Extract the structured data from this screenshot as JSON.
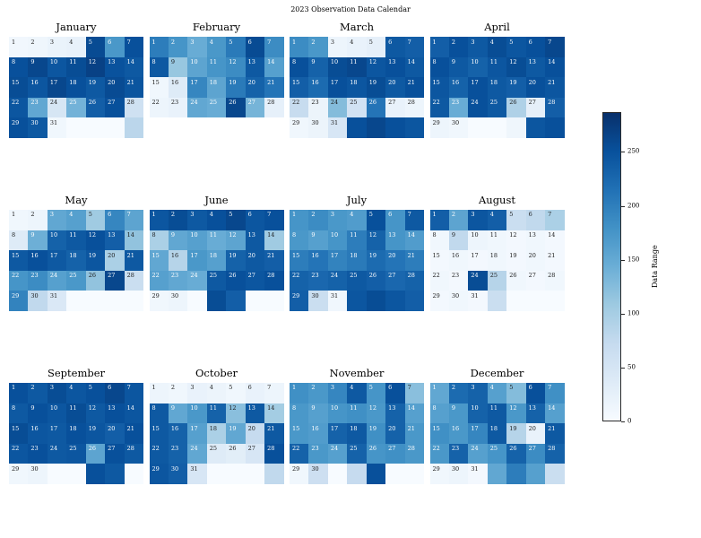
{
  "title": "2023 Observation Data Calendar",
  "chart_data": {
    "type": "heatmap",
    "title": "2023 Observation Data Calendar",
    "colorbar": {
      "label": "Data Range",
      "ticks": [
        0,
        50,
        100,
        150,
        200,
        250
      ],
      "vmin": 0,
      "vmax": 287
    },
    "palette": {
      "name": "Blues",
      "stops": [
        "#f7fbff",
        "#deebf7",
        "#c6dbef",
        "#9ecae1",
        "#6baed6",
        "#4292c6",
        "#2171b5",
        "#08519c",
        "#08306b"
      ]
    },
    "text_color_threshold": 135,
    "months": [
      {
        "name": "January",
        "days": 31,
        "values": [
          8,
          12,
          18,
          22,
          258,
          172,
          252,
          252,
          262,
          246,
          256,
          268,
          250,
          242,
          256,
          246,
          262,
          252,
          242,
          258,
          247,
          246,
          152,
          48,
          138,
          236,
          252,
          58,
          252,
          242,
          10,
          0,
          0,
          0,
          82
        ]
      },
      {
        "name": "February",
        "days": 28,
        "values": [
          202,
          176,
          146,
          172,
          206,
          258,
          186,
          242,
          112,
          156,
          176,
          186,
          242,
          162,
          10,
          36,
          192,
          156,
          206,
          232,
          212,
          14,
          20,
          152,
          146,
          262,
          136,
          24
        ]
      },
      {
        "name": "March",
        "days": 31,
        "values": [
          186,
          172,
          14,
          20,
          26,
          242,
          236,
          252,
          232,
          256,
          262,
          246,
          252,
          242,
          236,
          222,
          252,
          246,
          256,
          242,
          252,
          70,
          16,
          126,
          56,
          212,
          20,
          14,
          10,
          16,
          46,
          252,
          262,
          252,
          246
        ]
      },
      {
        "name": "April",
        "days": 30,
        "values": [
          236,
          252,
          242,
          256,
          246,
          252,
          262,
          252,
          242,
          232,
          246,
          256,
          242,
          252,
          246,
          232,
          252,
          242,
          236,
          252,
          246,
          242,
          146,
          252,
          242,
          92,
          26,
          236,
          14,
          10,
          0,
          0,
          12,
          246,
          252
        ]
      },
      {
        "name": "May",
        "days": 31,
        "values": [
          10,
          14,
          152,
          162,
          106,
          192,
          156,
          36,
          142,
          232,
          242,
          252,
          236,
          116,
          242,
          252,
          242,
          232,
          246,
          96,
          242,
          176,
          186,
          162,
          172,
          116,
          262,
          66,
          196,
          76,
          42,
          0,
          0,
          0,
          0
        ]
      },
      {
        "name": "June",
        "days": 30,
        "values": [
          246,
          256,
          242,
          252,
          262,
          246,
          252,
          96,
          152,
          162,
          146,
          156,
          242,
          106,
          152,
          86,
          172,
          162,
          232,
          242,
          236,
          162,
          152,
          146,
          242,
          252,
          246,
          252,
          10,
          14,
          0,
          256,
          236,
          0,
          0
        ]
      },
      {
        "name": "July",
        "days": 31,
        "values": [
          176,
          186,
          172,
          166,
          252,
          176,
          242,
          172,
          162,
          176,
          202,
          232,
          176,
          166,
          202,
          212,
          196,
          206,
          222,
          212,
          202,
          232,
          226,
          232,
          242,
          236,
          226,
          232,
          236,
          66,
          10,
          246,
          256,
          246,
          236
        ]
      },
      {
        "name": "August",
        "days": 31,
        "values": [
          236,
          156,
          246,
          236,
          66,
          76,
          96,
          10,
          76,
          14,
          10,
          6,
          10,
          6,
          6,
          10,
          6,
          10,
          6,
          10,
          6,
          10,
          6,
          256,
          86,
          10,
          6,
          10,
          6,
          10,
          6,
          66,
          0,
          0,
          0
        ]
      },
      {
        "name": "September",
        "days": 30,
        "values": [
          252,
          242,
          256,
          246,
          252,
          262,
          246,
          242,
          252,
          246,
          256,
          242,
          252,
          246,
          256,
          246,
          242,
          252,
          246,
          236,
          252,
          246,
          252,
          242,
          246,
          156,
          252,
          242,
          10,
          14,
          0,
          0,
          252,
          242,
          0
        ]
      },
      {
        "name": "October",
        "days": 31,
        "values": [
          14,
          10,
          20,
          16,
          10,
          20,
          14,
          242,
          152,
          172,
          232,
          122,
          242,
          102,
          242,
          232,
          162,
          96,
          152,
          72,
          242,
          242,
          232,
          152,
          36,
          30,
          46,
          252,
          246,
          236,
          46,
          0,
          0,
          0,
          76
        ]
      },
      {
        "name": "November",
        "days": 30,
        "values": [
          182,
          172,
          192,
          242,
          176,
          252,
          122,
          172,
          162,
          176,
          182,
          172,
          232,
          162,
          172,
          166,
          232,
          242,
          182,
          232,
          172,
          232,
          172,
          162,
          232,
          176,
          182,
          172,
          10,
          62,
          0,
          72,
          252,
          0,
          0
        ]
      },
      {
        "name": "December",
        "days": 31,
        "values": [
          152,
          222,
          232,
          162,
          126,
          252,
          182,
          162,
          172,
          232,
          242,
          172,
          232,
          162,
          182,
          172,
          192,
          242,
          86,
          20,
          242,
          172,
          232,
          162,
          176,
          232,
          186,
          232,
          10,
          14,
          6,
          152,
          202,
          162,
          66
        ]
      }
    ]
  }
}
